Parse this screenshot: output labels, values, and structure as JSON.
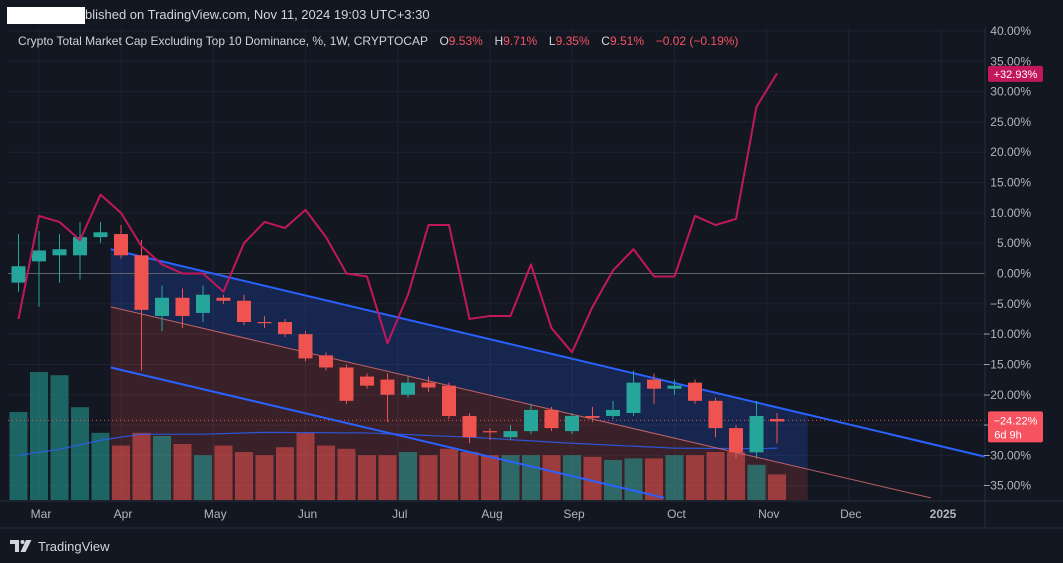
{
  "header": {
    "published_text": "blished on TradingView.com, Nov 11, 2024 19:03 UTC+3:30"
  },
  "legend": {
    "title": "Crypto Total Market Cap Excluding Top 10 Dominance, %, 1W, CRYPTOCAP",
    "o_label": "O",
    "o_value": "9.53%",
    "h_label": "H",
    "h_value": "9.71%",
    "l_label": "L",
    "l_value": "9.35%",
    "c_label": "C",
    "c_value": "9.51%",
    "change": "−0.02 (−0.19%)"
  },
  "branding": {
    "text": "TradingView",
    "icon": "tradingview-logo-icon"
  },
  "colors": {
    "background": "#131722",
    "up": "#26a69a",
    "down": "#ef5350",
    "performance_line": "#c2185b",
    "channel_line": "#2962ff",
    "grid": "#1e2230",
    "axis_text": "#b2b5be",
    "current_label_bg": "#f7525f",
    "perf_label_bg": "#c2185b"
  },
  "chart_data": {
    "type": "candlestick",
    "title": "Crypto Total Market Cap Excluding Top 10 Dominance, %, 1W, CRYPTOCAP",
    "y_unit": "%",
    "y_axis_ticks": [
      "40.00%",
      "35.00%",
      "30.00%",
      "25.00%",
      "20.00%",
      "15.00%",
      "10.00%",
      "5.00%",
      "0.00%",
      "−5.00%",
      "−10.00%",
      "−15.00%",
      "−20.00%",
      "−25.00%",
      "−30.00%",
      "−35.00%"
    ],
    "y_tick_values": [
      40,
      35,
      30,
      25,
      20,
      15,
      10,
      5,
      0,
      -5,
      -10,
      -15,
      -20,
      -25,
      -30,
      -35
    ],
    "ylim": [
      -37,
      41
    ],
    "x_axis_ticks": [
      "Mar",
      "Apr",
      "May",
      "Jun",
      "Jul",
      "Aug",
      "Sep",
      "Oct",
      "Nov",
      "Dec",
      "2025"
    ],
    "x_tick_week_index": [
      1,
      5,
      9.5,
      14,
      18.5,
      23,
      27,
      32,
      36.5,
      40.5,
      45
    ],
    "candles_percent": [
      {
        "o": -1.5,
        "c": 1.2,
        "h": 6.5,
        "l": -3.0
      },
      {
        "o": 2.0,
        "c": 3.8,
        "h": 7.0,
        "l": -5.5
      },
      {
        "o": 3.0,
        "c": 4.0,
        "h": 6.5,
        "l": -1.5
      },
      {
        "o": 3.0,
        "c": 6.0,
        "h": 8.5,
        "l": -1.0
      },
      {
        "o": 6.0,
        "c": 6.8,
        "h": 8.5,
        "l": 5.0
      },
      {
        "o": 6.5,
        "c": 3.0,
        "h": 8.0,
        "l": 2.5
      },
      {
        "o": 3.0,
        "c": -6.0,
        "h": 5.5,
        "l": -16.0
      },
      {
        "o": -7.0,
        "c": -4.0,
        "h": -2.0,
        "l": -9.5
      },
      {
        "o": -4.0,
        "c": -7.0,
        "h": -2.5,
        "l": -9.0
      },
      {
        "o": -6.5,
        "c": -3.5,
        "h": -2.0,
        "l": -8.0
      },
      {
        "o": -4.0,
        "c": -4.5,
        "h": -3.5,
        "l": -5.0
      },
      {
        "o": -4.5,
        "c": -8.0,
        "h": -3.5,
        "l": -8.5
      },
      {
        "o": -8.0,
        "c": -8.2,
        "h": -7.0,
        "l": -9.0
      },
      {
        "o": -8.0,
        "c": -10.0,
        "h": -7.5,
        "l": -10.5
      },
      {
        "o": -10.0,
        "c": -14.0,
        "h": -9.5,
        "l": -14.5
      },
      {
        "o": -13.5,
        "c": -15.5,
        "h": -13.0,
        "l": -16.0
      },
      {
        "o": -15.5,
        "c": -21.0,
        "h": -15.0,
        "l": -21.5
      },
      {
        "o": -17.0,
        "c": -18.5,
        "h": -16.5,
        "l": -19.0
      },
      {
        "o": -17.5,
        "c": -20.0,
        "h": -16.5,
        "l": -24.5
      },
      {
        "o": -20.0,
        "c": -18.0,
        "h": -17.0,
        "l": -20.5
      },
      {
        "o": -18.0,
        "c": -18.8,
        "h": -17.0,
        "l": -19.5
      },
      {
        "o": -18.5,
        "c": -23.5,
        "h": -18.0,
        "l": -24.0
      },
      {
        "o": -23.5,
        "c": -27.0,
        "h": -23.0,
        "l": -28.0
      },
      {
        "o": -26.0,
        "c": -26.2,
        "h": -25.5,
        "l": -27.5
      },
      {
        "o": -27.0,
        "c": -26.0,
        "h": -25.0,
        "l": -27.5
      },
      {
        "o": -26.0,
        "c": -22.5,
        "h": -21.5,
        "l": -26.5
      },
      {
        "o": -22.5,
        "c": -25.5,
        "h": -22.0,
        "l": -26.0
      },
      {
        "o": -26.0,
        "c": -23.5,
        "h": -23.0,
        "l": -26.5
      },
      {
        "o": -23.5,
        "c": -23.8,
        "h": -22.0,
        "l": -24.5
      },
      {
        "o": -23.5,
        "c": -22.5,
        "h": -21.0,
        "l": -24.0
      },
      {
        "o": -23.0,
        "c": -18.0,
        "h": -16.0,
        "l": -23.5
      },
      {
        "o": -17.5,
        "c": -19.0,
        "h": -16.5,
        "l": -21.5
      },
      {
        "o": -19.0,
        "c": -18.5,
        "h": -17.5,
        "l": -20.0
      },
      {
        "o": -18.0,
        "c": -21.0,
        "h": -17.5,
        "l": -21.5
      },
      {
        "o": -21.0,
        "c": -25.5,
        "h": -20.5,
        "l": -27.0
      },
      {
        "o": -25.5,
        "c": -29.5,
        "h": -25.0,
        "l": -30.5
      },
      {
        "o": -29.5,
        "c": -23.5,
        "h": -21.0,
        "l": -30.5
      },
      {
        "o": -24.0,
        "c": -24.4,
        "h": -23.0,
        "l": -28.0
      }
    ],
    "volume_relative": [
      0.55,
      0.8,
      0.78,
      0.58,
      0.42,
      0.34,
      0.42,
      0.4,
      0.35,
      0.28,
      0.34,
      0.3,
      0.28,
      0.33,
      0.42,
      0.34,
      0.32,
      0.28,
      0.28,
      0.3,
      0.28,
      0.32,
      0.3,
      0.28,
      0.28,
      0.28,
      0.28,
      0.28,
      0.27,
      0.25,
      0.26,
      0.26,
      0.28,
      0.28,
      0.3,
      0.3,
      0.22,
      0.16
    ],
    "performance_series": [
      {
        "week": 0,
        "value": -7.5
      },
      {
        "week": 1,
        "value": 9.5
      },
      {
        "week": 2,
        "value": 8.5
      },
      {
        "week": 3,
        "value": 5.5
      },
      {
        "week": 4,
        "value": 13.0
      },
      {
        "week": 5,
        "value": 10.0
      },
      {
        "week": 6,
        "value": 4.5
      },
      {
        "week": 7,
        "value": 1.5
      },
      {
        "week": 8,
        "value": 0.0
      },
      {
        "week": 9,
        "value": 0.0
      },
      {
        "week": 10,
        "value": -3.0
      },
      {
        "week": 11,
        "value": 5.0
      },
      {
        "week": 12,
        "value": 8.5
      },
      {
        "week": 13,
        "value": 7.5
      },
      {
        "week": 14,
        "value": 10.5
      },
      {
        "week": 15,
        "value": 6.0
      },
      {
        "week": 16,
        "value": 0.0
      },
      {
        "week": 17,
        "value": -0.5
      },
      {
        "week": 18,
        "value": -11.5
      },
      {
        "week": 19,
        "value": -3.5
      },
      {
        "week": 20,
        "value": 8.0
      },
      {
        "week": 21,
        "value": 8.0
      },
      {
        "week": 22,
        "value": -7.5
      },
      {
        "week": 23,
        "value": -7.0
      },
      {
        "week": 24,
        "value": -7.0
      },
      {
        "week": 25,
        "value": 1.5
      },
      {
        "week": 26,
        "value": -9.0
      },
      {
        "week": 27,
        "value": -13.0
      },
      {
        "week": 28,
        "value": -5.5
      },
      {
        "week": 29,
        "value": 0.5
      },
      {
        "week": 30,
        "value": 4.0
      },
      {
        "week": 31,
        "value": -0.5
      },
      {
        "week": 32,
        "value": -0.5
      },
      {
        "week": 33,
        "value": 9.5
      },
      {
        "week": 34,
        "value": 8.0
      },
      {
        "week": 35,
        "value": 9.0
      },
      {
        "week": 36,
        "value": 27.5
      },
      {
        "week": 37,
        "value": 33.0
      }
    ],
    "volume_ma": [
      {
        "week": 0,
        "value": -30.0
      },
      {
        "week": 2,
        "value": -29.0
      },
      {
        "week": 4,
        "value": -27.5
      },
      {
        "week": 6,
        "value": -26.5
      },
      {
        "week": 9,
        "value": -26.5
      },
      {
        "week": 12,
        "value": -26.2
      },
      {
        "week": 17,
        "value": -26.3
      },
      {
        "week": 22,
        "value": -27.0
      },
      {
        "week": 27,
        "value": -28.0
      },
      {
        "week": 32,
        "value": -28.8
      },
      {
        "week": 36,
        "value": -28.9
      },
      {
        "week": 37,
        "value": -28.8
      }
    ],
    "channel": {
      "upper": {
        "start": {
          "week": 4.5,
          "value": 4.0
        },
        "end": {
          "week": 47.5,
          "value": -30.5
        }
      },
      "mid": {
        "start": {
          "week": 4.5,
          "value": -5.5
        },
        "end": {
          "week": 44.5,
          "value": -37.0
        }
      },
      "lower": {
        "start": {
          "week": 4.5,
          "value": -15.5
        },
        "end": {
          "week": 31.5,
          "value": -37.0
        }
      },
      "fill_until_week": 38.5
    },
    "zero_line": 0,
    "current_price_line": -24.22,
    "labels": {
      "performance_label": "+32.93%",
      "performance_value": 32.93,
      "current_label": "−24.22%",
      "current_value": -24.22,
      "countdown_label": "6d 9h"
    }
  }
}
